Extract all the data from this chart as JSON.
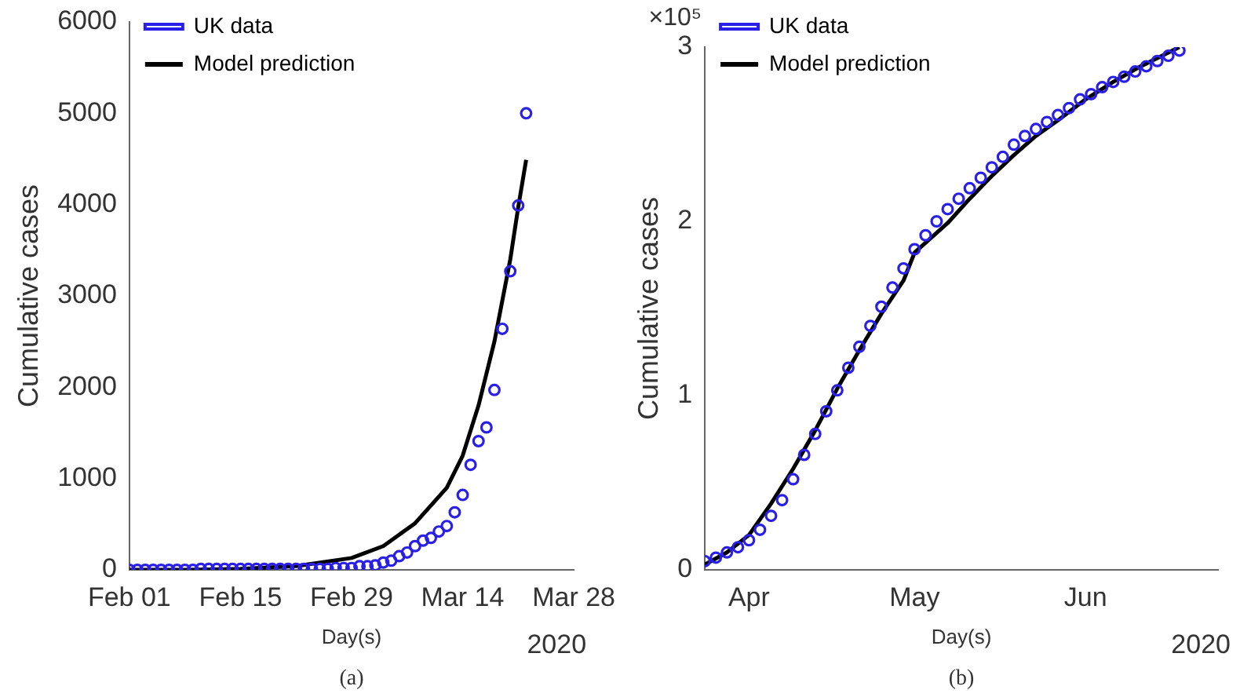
{
  "chart_data": [
    {
      "type": "line",
      "xlabel": "Day(s)",
      "ylabel": "Cumulative cases",
      "legend": "top left",
      "grid": false,
      "xlim": [
        "2020-02-01",
        "2020-03-28"
      ],
      "xticks": [
        {
          "value": "2020-02-01",
          "label": "Feb 01"
        },
        {
          "value": "2020-02-15",
          "label": "Feb 15"
        },
        {
          "value": "2020-02-29",
          "label": "Feb 29"
        },
        {
          "value": "2020-03-14",
          "label": "Mar 14"
        },
        {
          "value": "2020-03-28",
          "label": "Mar 28"
        }
      ],
      "ylim": [
        0,
        6000
      ],
      "yticks": [
        0,
        1000,
        2000,
        3000,
        4000,
        5000,
        6000
      ],
      "annotations": [
        "2020",
        "(a)"
      ],
      "series": [
        {
          "name": "UK data",
          "type": "scatter",
          "marker": "circle",
          "color": "#2a1fe6",
          "x": [
            "2020-02-01",
            "2020-02-02",
            "2020-02-03",
            "2020-02-04",
            "2020-02-05",
            "2020-02-06",
            "2020-02-07",
            "2020-02-08",
            "2020-02-09",
            "2020-02-10",
            "2020-02-11",
            "2020-02-12",
            "2020-02-13",
            "2020-02-14",
            "2020-02-15",
            "2020-02-16",
            "2020-02-17",
            "2020-02-18",
            "2020-02-19",
            "2020-02-20",
            "2020-02-21",
            "2020-02-22",
            "2020-02-23",
            "2020-02-24",
            "2020-02-25",
            "2020-02-26",
            "2020-02-27",
            "2020-02-28",
            "2020-02-29",
            "2020-03-01",
            "2020-03-02",
            "2020-03-03",
            "2020-03-04",
            "2020-03-05",
            "2020-03-06",
            "2020-03-07",
            "2020-03-08",
            "2020-03-09",
            "2020-03-10",
            "2020-03-11",
            "2020-03-12",
            "2020-03-13",
            "2020-03-14",
            "2020-03-15",
            "2020-03-16",
            "2020-03-17",
            "2020-03-18",
            "2020-03-19",
            "2020-03-20",
            "2020-03-21",
            "2020-03-22"
          ],
          "values": [
            0,
            0,
            0,
            0,
            0,
            0,
            0,
            0,
            0,
            10,
            10,
            10,
            10,
            10,
            10,
            10,
            10,
            10,
            10,
            10,
            10,
            10,
            10,
            10,
            10,
            10,
            20,
            20,
            20,
            40,
            40,
            50,
            80,
            100,
            150,
            190,
            260,
            320,
            350,
            420,
            480,
            630,
            820,
            1150,
            1410,
            1560,
            1970,
            2640,
            3270,
            3990,
            5000
          ]
        },
        {
          "name": "Model prediction",
          "type": "line",
          "marker": "none",
          "color": "#000000",
          "x": [
            "2020-02-01",
            "2020-02-08",
            "2020-02-15",
            "2020-02-22",
            "2020-02-29",
            "2020-03-04",
            "2020-03-08",
            "2020-03-12",
            "2020-03-14",
            "2020-03-16",
            "2020-03-18",
            "2020-03-20",
            "2020-03-21",
            "2020-03-22"
          ],
          "values": [
            0,
            0,
            10,
            40,
            130,
            260,
            510,
            900,
            1250,
            1800,
            2500,
            3400,
            3970,
            4490
          ]
        }
      ]
    },
    {
      "type": "line",
      "xlabel": "Day(s)",
      "ylabel": "Cumulative cases",
      "legend": "top left",
      "grid": false,
      "xlim": [
        "2020-03-24",
        "2020-06-25"
      ],
      "xticks": [
        {
          "value": "2020-04-01",
          "label": "Apr"
        },
        {
          "value": "2020-05-01",
          "label": "May"
        },
        {
          "value": "2020-06-01",
          "label": "Jun"
        }
      ],
      "ylim": [
        0,
        3
      ],
      "yticks": [
        0,
        1,
        2,
        3
      ],
      "annotations": [
        "2020",
        "(b)",
        "×10⁵"
      ],
      "series": [
        {
          "name": "UK data",
          "type": "scatter",
          "marker": "circle",
          "color": "#2a1fe6",
          "x": [
            "2020-03-24",
            "2020-03-26",
            "2020-03-28",
            "2020-03-30",
            "2020-04-01",
            "2020-04-03",
            "2020-04-05",
            "2020-04-07",
            "2020-04-09",
            "2020-04-11",
            "2020-04-13",
            "2020-04-15",
            "2020-04-17",
            "2020-04-19",
            "2020-04-21",
            "2020-04-23",
            "2020-04-25",
            "2020-04-27",
            "2020-04-29",
            "2020-05-01",
            "2020-05-03",
            "2020-05-05",
            "2020-05-07",
            "2020-05-09",
            "2020-05-11",
            "2020-05-13",
            "2020-05-15",
            "2020-05-17",
            "2020-05-19",
            "2020-05-21",
            "2020-05-23",
            "2020-05-25",
            "2020-05-27",
            "2020-05-29",
            "2020-05-31",
            "2020-06-02",
            "2020-06-04",
            "2020-06-06",
            "2020-06-08",
            "2020-06-10",
            "2020-06-12",
            "2020-06-14",
            "2020-06-16",
            "2020-06-18"
          ],
          "values": [
            0.05,
            0.07,
            0.1,
            0.13,
            0.17,
            0.23,
            0.31,
            0.4,
            0.52,
            0.66,
            0.78,
            0.91,
            1.03,
            1.16,
            1.28,
            1.4,
            1.51,
            1.62,
            1.73,
            1.84,
            1.92,
            2,
            2.07,
            2.13,
            2.19,
            2.25,
            2.31,
            2.37,
            2.44,
            2.49,
            2.53,
            2.57,
            2.61,
            2.65,
            2.7,
            2.73,
            2.77,
            2.8,
            2.83,
            2.86,
            2.89,
            2.92,
            2.95,
            2.98
          ]
        },
        {
          "name": "Model prediction",
          "type": "line",
          "marker": "none",
          "color": "#000000",
          "x": [
            "2020-03-24",
            "2020-03-28",
            "2020-04-01",
            "2020-04-05",
            "2020-04-09",
            "2020-04-13",
            "2020-04-17",
            "2020-04-21",
            "2020-04-25",
            "2020-04-29",
            "2020-05-01",
            "2020-05-07",
            "2020-05-11",
            "2020-05-15",
            "2020-05-19",
            "2020-05-23",
            "2020-05-27",
            "2020-06-01",
            "2020-06-06",
            "2020-06-11",
            "2020-06-18"
          ],
          "values": [
            0.03,
            0.1,
            0.2,
            0.38,
            0.58,
            0.8,
            1.04,
            1.26,
            1.47,
            1.66,
            1.82,
            1.99,
            2.13,
            2.26,
            2.38,
            2.49,
            2.58,
            2.7,
            2.8,
            2.89,
            3
          ]
        }
      ]
    }
  ]
}
